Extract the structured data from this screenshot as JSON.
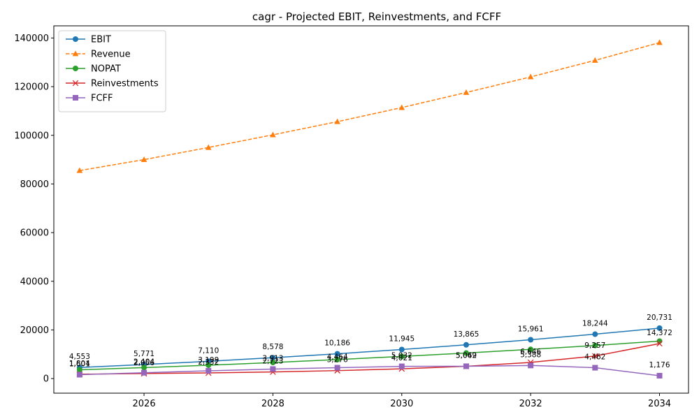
{
  "chart_data": {
    "type": "line",
    "title": "cagr - Projected EBIT, Reinvestments, and FCFF",
    "xlabel": "",
    "ylabel": "",
    "x": [
      2025,
      2026,
      2027,
      2028,
      2029,
      2030,
      2031,
      2032,
      2033,
      2034
    ],
    "xlim": [
      2024.6,
      2034.45
    ],
    "ylim": [
      -6000,
      145000
    ],
    "x_ticks": [
      2026,
      2028,
      2030,
      2032,
      2034
    ],
    "y_ticks": [
      0,
      20000,
      40000,
      60000,
      80000,
      100000,
      120000,
      140000
    ],
    "grid": false,
    "legend_position": "top-left",
    "series": [
      {
        "name": "EBIT",
        "color": "#1f77b4",
        "marker": "circle",
        "dash": "solid",
        "values": [
          4553,
          5771,
          7110,
          8578,
          10186,
          11945,
          13865,
          15961,
          18244,
          20731
        ],
        "labels": [
          "4,553",
          "5,771",
          "7,110",
          "8,578",
          "10,186",
          "11,945",
          "13,865",
          "15,961",
          "18,244",
          "20,731"
        ]
      },
      {
        "name": "Revenue",
        "color": "#ff7f0e",
        "marker": "triangle",
        "dash": "dashed",
        "values": [
          85500,
          90000,
          95000,
          100200,
          105600,
          111400,
          117600,
          124000,
          130800,
          138100
        ],
        "labels": []
      },
      {
        "name": "NOPAT",
        "color": "#2ca02c",
        "marker": "circle",
        "dash": "solid",
        "values": [
          3600,
          4500,
          5500,
          6600,
          7800,
          9100,
          10500,
          12000,
          13600,
          15400
        ],
        "labels": []
      },
      {
        "name": "Reinvestments",
        "color": "#d62728",
        "marker": "x",
        "dash": "solid",
        "values": [
          1804,
          2056,
          2332,
          2723,
          3276,
          4021,
          5049,
          6646,
          9257,
          14372
        ],
        "labels": [
          "1,804",
          "2,056",
          "2,332",
          "2,723",
          "3,276",
          "4,021",
          "5,049",
          "6,646",
          "9,257",
          "14,372"
        ]
      },
      {
        "name": "FCFF",
        "color": "#9467bd",
        "marker": "square",
        "dash": "solid",
        "values": [
          1601,
          2404,
          3199,
          3913,
          4464,
          5032,
          5062,
          5388,
          4462,
          1176
        ],
        "labels": [
          "1,601",
          "2,404",
          "3,199",
          "3,913",
          "4,464",
          "5,032",
          "5,062",
          "5,388",
          "4,462",
          "1,176"
        ]
      }
    ]
  }
}
